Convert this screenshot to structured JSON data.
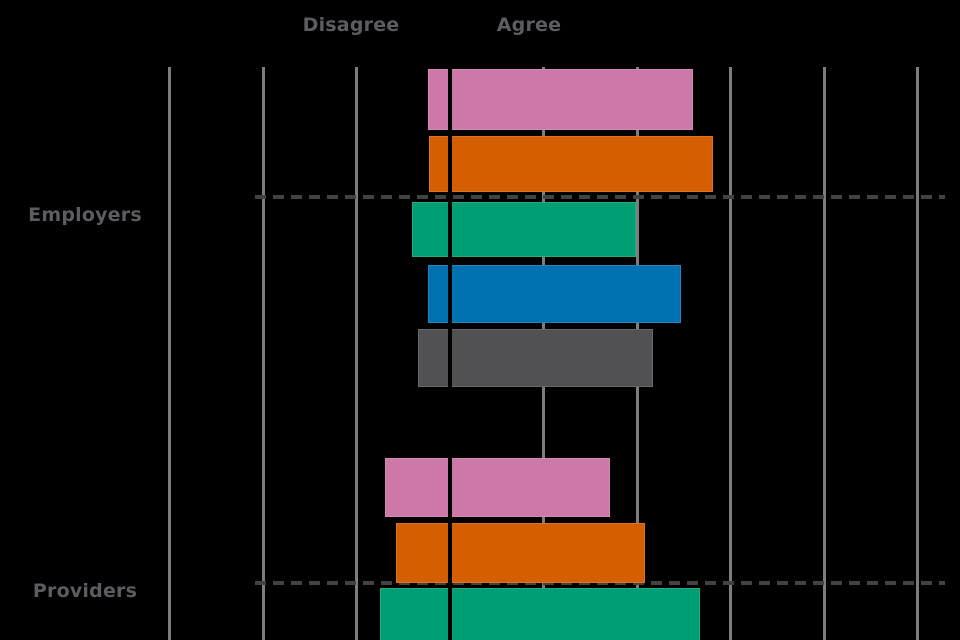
{
  "header": {
    "disagree_label": "Disagree",
    "agree_label": "Agree"
  },
  "colors": {
    "background": "#000000",
    "gridline": "#7d7d7d",
    "dashed_category_line": "#424242",
    "zero_axis": "#000000",
    "label_text": "#5d5d61",
    "series_pink": "#CC79A7",
    "series_orange": "#D55E00",
    "series_green": "#009E73",
    "series_blue": "#0072B2",
    "series_gray": "#515154"
  },
  "chart_data": {
    "type": "bar",
    "subtype": "horizontal-diverging",
    "title": "",
    "xlabel": "",
    "ylabel": "",
    "legend": "none",
    "x_axis": {
      "tick_labels_visible": false,
      "center_value": 0,
      "gridline_step_units": 1,
      "gridlines_units": [
        -3,
        -2,
        -1,
        1,
        2,
        3,
        4,
        5
      ],
      "disagree_label": "Disagree",
      "agree_label": "Agree"
    },
    "categories": [
      "Employers",
      "Providers"
    ],
    "series_names": [
      "pink",
      "orange",
      "green",
      "blue",
      "gray"
    ],
    "groups": [
      {
        "category": "Employers",
        "bars": [
          {
            "series": "pink",
            "color": "#CC79A7",
            "disagree_units": -0.24,
            "agree_units": 2.6
          },
          {
            "series": "orange",
            "color": "#D55E00",
            "disagree_units": -0.22,
            "agree_units": 2.81
          },
          {
            "series": "green",
            "color": "#009E73",
            "disagree_units": -0.41,
            "agree_units": 1.99
          },
          {
            "series": "blue",
            "color": "#0072B2",
            "disagree_units": -0.24,
            "agree_units": 2.47
          },
          {
            "series": "gray",
            "color": "#515154",
            "disagree_units": -0.34,
            "agree_units": 2.17
          }
        ]
      },
      {
        "category": "Providers",
        "bars": [
          {
            "series": "pink",
            "color": "#CC79A7",
            "disagree_units": -0.7,
            "agree_units": 1.71
          },
          {
            "series": "orange",
            "color": "#D55E00",
            "disagree_units": -0.58,
            "agree_units": 2.09
          },
          {
            "series": "green",
            "color": "#009E73",
            "disagree_units": -0.75,
            "agree_units": 2.67
          }
        ]
      }
    ]
  }
}
